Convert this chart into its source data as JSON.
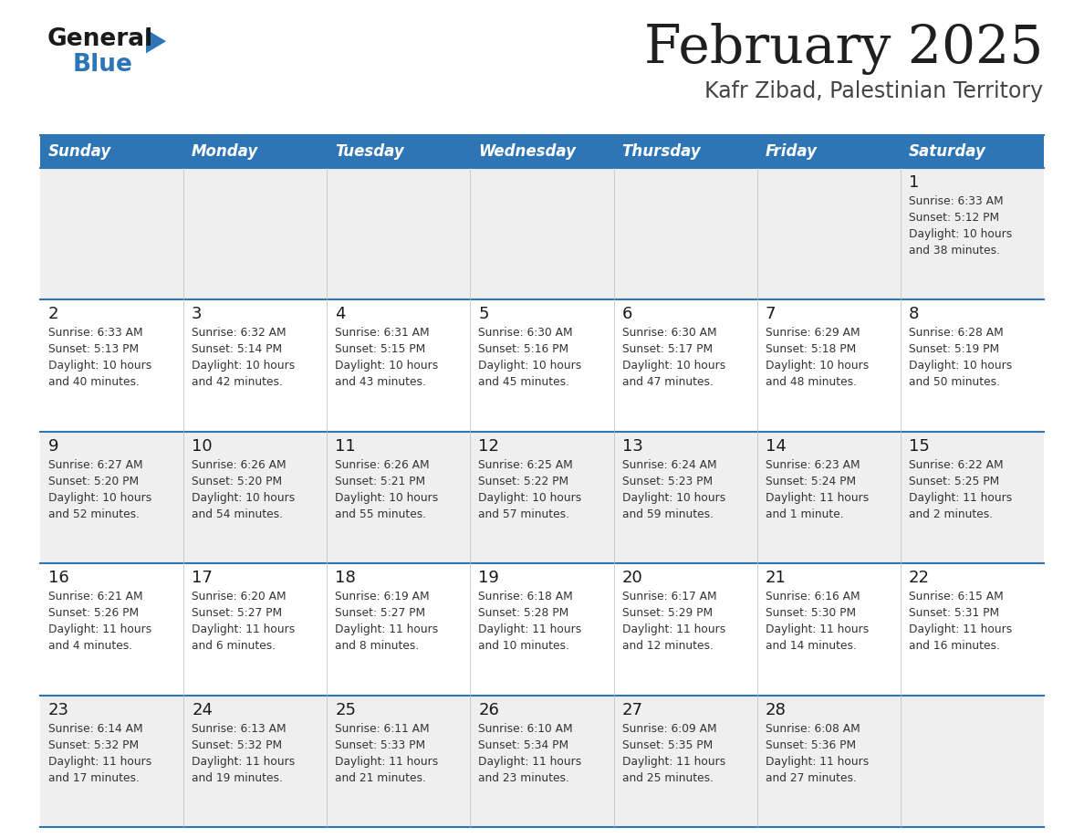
{
  "title": "February 2025",
  "subtitle": "Kafr Zibad, Palestinian Territory",
  "header_bg": "#2E75B6",
  "header_text_color": "#FFFFFF",
  "cell_bg_odd": "#EFEFEF",
  "cell_bg_even": "#FFFFFF",
  "text_color": "#333333",
  "border_color": "#2E75B6",
  "days_of_week": [
    "Sunday",
    "Monday",
    "Tuesday",
    "Wednesday",
    "Thursday",
    "Friday",
    "Saturday"
  ],
  "calendar": [
    [
      {
        "day": "",
        "sunrise": "",
        "sunset": "",
        "daylight": ""
      },
      {
        "day": "",
        "sunrise": "",
        "sunset": "",
        "daylight": ""
      },
      {
        "day": "",
        "sunrise": "",
        "sunset": "",
        "daylight": ""
      },
      {
        "day": "",
        "sunrise": "",
        "sunset": "",
        "daylight": ""
      },
      {
        "day": "",
        "sunrise": "",
        "sunset": "",
        "daylight": ""
      },
      {
        "day": "",
        "sunrise": "",
        "sunset": "",
        "daylight": ""
      },
      {
        "day": "1",
        "sunrise": "6:33 AM",
        "sunset": "5:12 PM",
        "daylight": "10 hours\nand 38 minutes."
      }
    ],
    [
      {
        "day": "2",
        "sunrise": "6:33 AM",
        "sunset": "5:13 PM",
        "daylight": "10 hours\nand 40 minutes."
      },
      {
        "day": "3",
        "sunrise": "6:32 AM",
        "sunset": "5:14 PM",
        "daylight": "10 hours\nand 42 minutes."
      },
      {
        "day": "4",
        "sunrise": "6:31 AM",
        "sunset": "5:15 PM",
        "daylight": "10 hours\nand 43 minutes."
      },
      {
        "day": "5",
        "sunrise": "6:30 AM",
        "sunset": "5:16 PM",
        "daylight": "10 hours\nand 45 minutes."
      },
      {
        "day": "6",
        "sunrise": "6:30 AM",
        "sunset": "5:17 PM",
        "daylight": "10 hours\nand 47 minutes."
      },
      {
        "day": "7",
        "sunrise": "6:29 AM",
        "sunset": "5:18 PM",
        "daylight": "10 hours\nand 48 minutes."
      },
      {
        "day": "8",
        "sunrise": "6:28 AM",
        "sunset": "5:19 PM",
        "daylight": "10 hours\nand 50 minutes."
      }
    ],
    [
      {
        "day": "9",
        "sunrise": "6:27 AM",
        "sunset": "5:20 PM",
        "daylight": "10 hours\nand 52 minutes."
      },
      {
        "day": "10",
        "sunrise": "6:26 AM",
        "sunset": "5:20 PM",
        "daylight": "10 hours\nand 54 minutes."
      },
      {
        "day": "11",
        "sunrise": "6:26 AM",
        "sunset": "5:21 PM",
        "daylight": "10 hours\nand 55 minutes."
      },
      {
        "day": "12",
        "sunrise": "6:25 AM",
        "sunset": "5:22 PM",
        "daylight": "10 hours\nand 57 minutes."
      },
      {
        "day": "13",
        "sunrise": "6:24 AM",
        "sunset": "5:23 PM",
        "daylight": "10 hours\nand 59 minutes."
      },
      {
        "day": "14",
        "sunrise": "6:23 AM",
        "sunset": "5:24 PM",
        "daylight": "11 hours\nand 1 minute."
      },
      {
        "day": "15",
        "sunrise": "6:22 AM",
        "sunset": "5:25 PM",
        "daylight": "11 hours\nand 2 minutes."
      }
    ],
    [
      {
        "day": "16",
        "sunrise": "6:21 AM",
        "sunset": "5:26 PM",
        "daylight": "11 hours\nand 4 minutes."
      },
      {
        "day": "17",
        "sunrise": "6:20 AM",
        "sunset": "5:27 PM",
        "daylight": "11 hours\nand 6 minutes."
      },
      {
        "day": "18",
        "sunrise": "6:19 AM",
        "sunset": "5:27 PM",
        "daylight": "11 hours\nand 8 minutes."
      },
      {
        "day": "19",
        "sunrise": "6:18 AM",
        "sunset": "5:28 PM",
        "daylight": "11 hours\nand 10 minutes."
      },
      {
        "day": "20",
        "sunrise": "6:17 AM",
        "sunset": "5:29 PM",
        "daylight": "11 hours\nand 12 minutes."
      },
      {
        "day": "21",
        "sunrise": "6:16 AM",
        "sunset": "5:30 PM",
        "daylight": "11 hours\nand 14 minutes."
      },
      {
        "day": "22",
        "sunrise": "6:15 AM",
        "sunset": "5:31 PM",
        "daylight": "11 hours\nand 16 minutes."
      }
    ],
    [
      {
        "day": "23",
        "sunrise": "6:14 AM",
        "sunset": "5:32 PM",
        "daylight": "11 hours\nand 17 minutes."
      },
      {
        "day": "24",
        "sunrise": "6:13 AM",
        "sunset": "5:32 PM",
        "daylight": "11 hours\nand 19 minutes."
      },
      {
        "day": "25",
        "sunrise": "6:11 AM",
        "sunset": "5:33 PM",
        "daylight": "11 hours\nand 21 minutes."
      },
      {
        "day": "26",
        "sunrise": "6:10 AM",
        "sunset": "5:34 PM",
        "daylight": "11 hours\nand 23 minutes."
      },
      {
        "day": "27",
        "sunrise": "6:09 AM",
        "sunset": "5:35 PM",
        "daylight": "11 hours\nand 25 minutes."
      },
      {
        "day": "28",
        "sunrise": "6:08 AM",
        "sunset": "5:36 PM",
        "daylight": "11 hours\nand 27 minutes."
      },
      {
        "day": "",
        "sunrise": "",
        "sunset": "",
        "daylight": ""
      }
    ]
  ]
}
